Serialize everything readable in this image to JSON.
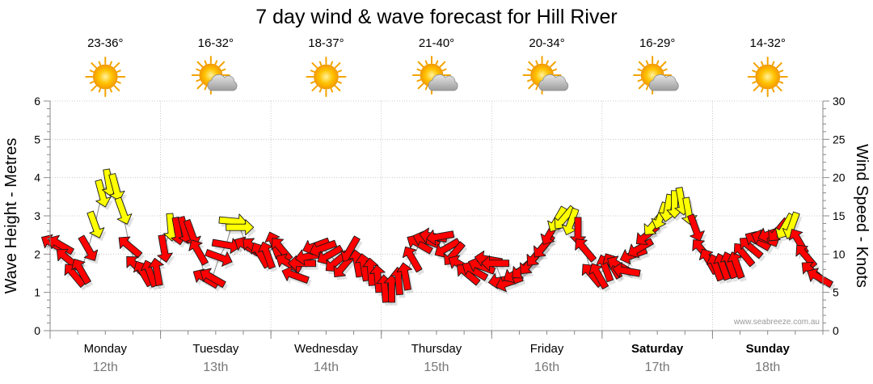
{
  "chart_data": {
    "type": "line",
    "title": "7 day wind & wave forecast for Hill River",
    "y_left_label": "Wave Height - Metres",
    "y_right_label": "Wind Speed - Knots",
    "y_left_range": [
      0,
      6
    ],
    "y_right_range": [
      0,
      30
    ],
    "y_left_ticks": [
      "0",
      "1",
      "2",
      "3",
      "4",
      "5",
      "6"
    ],
    "y_right_ticks": [
      "0",
      "5",
      "10",
      "15",
      "20",
      "25",
      "30"
    ],
    "grid": true,
    "days": [
      {
        "day": "Monday",
        "date": "12th",
        "temp": "23-36°",
        "weather": "sunny",
        "bold": false
      },
      {
        "day": "Tuesday",
        "date": "13th",
        "temp": "16-32°",
        "weather": "partly-cloudy",
        "bold": false
      },
      {
        "day": "Wednesday",
        "date": "14th",
        "temp": "18-37°",
        "weather": "sunny",
        "bold": false
      },
      {
        "day": "Thursday",
        "date": "15th",
        "temp": "21-40°",
        "weather": "partly-cloudy",
        "bold": false
      },
      {
        "day": "Friday",
        "date": "16th",
        "temp": "20-34°",
        "weather": "partly-cloudy",
        "bold": false
      },
      {
        "day": "Saturday",
        "date": "17th",
        "temp": "16-29°",
        "weather": "partly-cloudy",
        "bold": true
      },
      {
        "day": "Sunday",
        "date": "18th",
        "temp": "14-32°",
        "weather": "sunny",
        "bold": true
      }
    ],
    "wind_series": {
      "name": "Wind",
      "values_knots": [
        11.3,
        11.2,
        9.4,
        7.3,
        7.8,
        10.7,
        13.8,
        17.9,
        19.3,
        18.7,
        15.6,
        11.0,
        8.4,
        7.5,
        7.5,
        7.7,
        10.7,
        13.5,
        13.0,
        13.1,
        12.7,
        10.3,
        6.8,
        6.9,
        9.6,
        11.2,
        14.3,
        13.5,
        11.0,
        10.8,
        9.9,
        9.9,
        11.2,
        10.7,
        8.8,
        7.2,
        8.8,
        9.7,
        11.1,
        10.8,
        9.9,
        9.0,
        8.4,
        10.6,
        8.8,
        8.3,
        7.7,
        6.8,
        5.5,
        5.5,
        6.5,
        7.1,
        9.4,
        11.3,
        11.8,
        12.3,
        12.3,
        10.8,
        10.0,
        8.6,
        7.4,
        7.8,
        8.4,
        9.3,
        8.8,
        6.6,
        6.3,
        7.5,
        8.1,
        8.8,
        9.9,
        11.0,
        12.8,
        14.5,
        14.7,
        14.2,
        13.0,
        10.6,
        7.3,
        7.2,
        8.2,
        8.5,
        8.5,
        7.8,
        9.9,
        10.8,
        12.5,
        13.9,
        15.0,
        16.0,
        16.5,
        16.9,
        15.6,
        13.4,
        10.5,
        9.1,
        8.3,
        8.4,
        8.6,
        8.6,
        10.0,
        10.9,
        11.7,
        12.0,
        12.7,
        13.1,
        13.6,
        13.7,
        11.7,
        9.8,
        7.7,
        6.9
      ],
      "direction_deg": [
        300,
        300,
        310,
        320,
        330,
        150,
        160,
        165,
        170,
        165,
        160,
        310,
        315,
        330,
        340,
        350,
        170,
        175,
        170,
        165,
        160,
        330,
        300,
        300,
        110,
        100,
        95,
        90,
        300,
        310,
        330,
        340,
        340,
        320,
        300,
        290,
        270,
        260,
        250,
        250,
        240,
        230,
        220,
        210,
        350,
        350,
        355,
        355,
        355,
        0,
        355,
        350,
        330,
        300,
        290,
        280,
        260,
        240,
        220,
        300,
        310,
        300,
        290,
        280,
        270,
        260,
        250,
        240,
        230,
        220,
        220,
        220,
        210,
        210,
        220,
        200,
        180,
        320,
        320,
        330,
        340,
        330,
        300,
        280,
        250,
        240,
        230,
        220,
        200,
        190,
        180,
        170,
        170,
        160,
        320,
        330,
        340,
        340,
        340,
        340,
        320,
        310,
        300,
        290,
        250,
        220,
        210,
        200,
        330,
        320,
        310,
        300
      ],
      "colors": {
        "light": "#ffff00",
        "strong": "#ff0000"
      }
    },
    "watermark": "www.seabreeze.com.au"
  }
}
